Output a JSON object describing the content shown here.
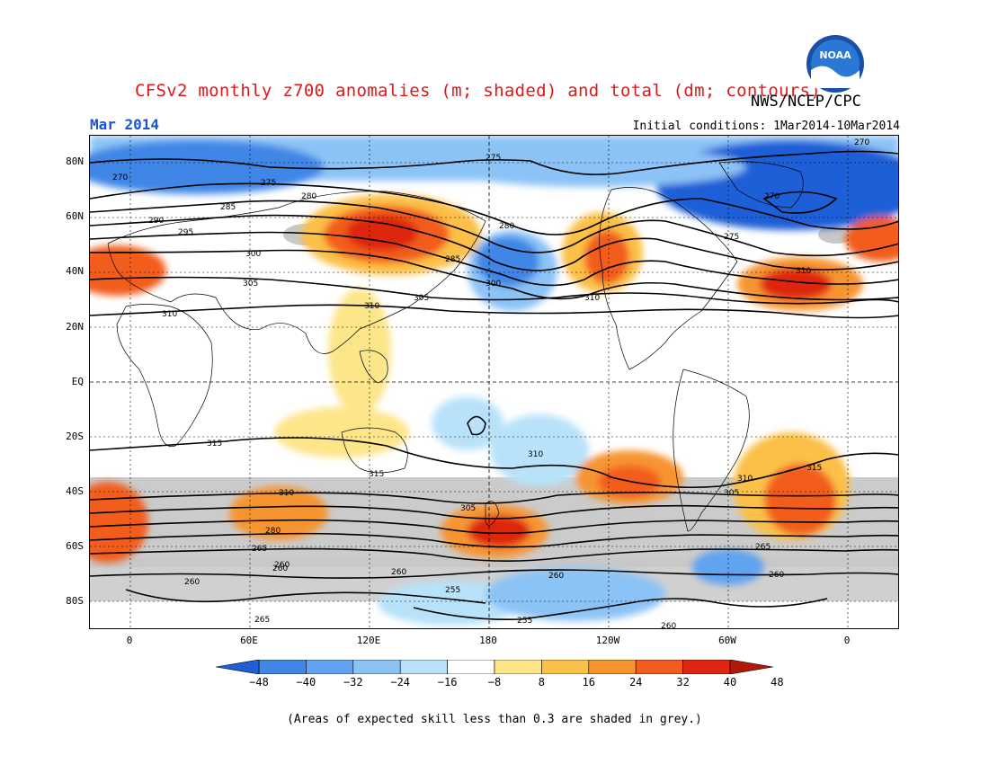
{
  "header": {
    "title": "CFSv2 monthly z700 anomalies (m; shaded) and total (dm; contours)",
    "agency": "NWS/NCEP/CPC",
    "logo_text": "NOAA",
    "month": "Mar 2014",
    "initial_conditions": "Initial conditions: 1Mar2014-10Mar2014"
  },
  "map": {
    "lat_labels": [
      "80N",
      "60N",
      "40N",
      "20N",
      "EQ",
      "20S",
      "40S",
      "60S",
      "80S"
    ],
    "lon_labels": [
      "0",
      "60E",
      "120E",
      "180",
      "120W",
      "60W",
      "0"
    ],
    "contour_labels": [
      "270",
      "275",
      "280",
      "285",
      "290",
      "295",
      "300",
      "305",
      "310",
      "315",
      "265",
      "260",
      "255"
    ]
  },
  "colorbar": {
    "labels": [
      "-48",
      "-40",
      "-32",
      "-24",
      "-16",
      "-8",
      "8",
      "16",
      "24",
      "32",
      "40",
      "48"
    ],
    "colors": [
      "#1f5fd6",
      "#3f86e6",
      "#61a3f0",
      "#8cc3f6",
      "#b8e2f9",
      "#ffffff",
      "#fde58a",
      "#fcc047",
      "#f79430",
      "#f25d1d",
      "#de2610",
      "#b01808"
    ]
  },
  "footnote": "(Areas of expected skill less than 0.3 are shaded in grey.)"
}
